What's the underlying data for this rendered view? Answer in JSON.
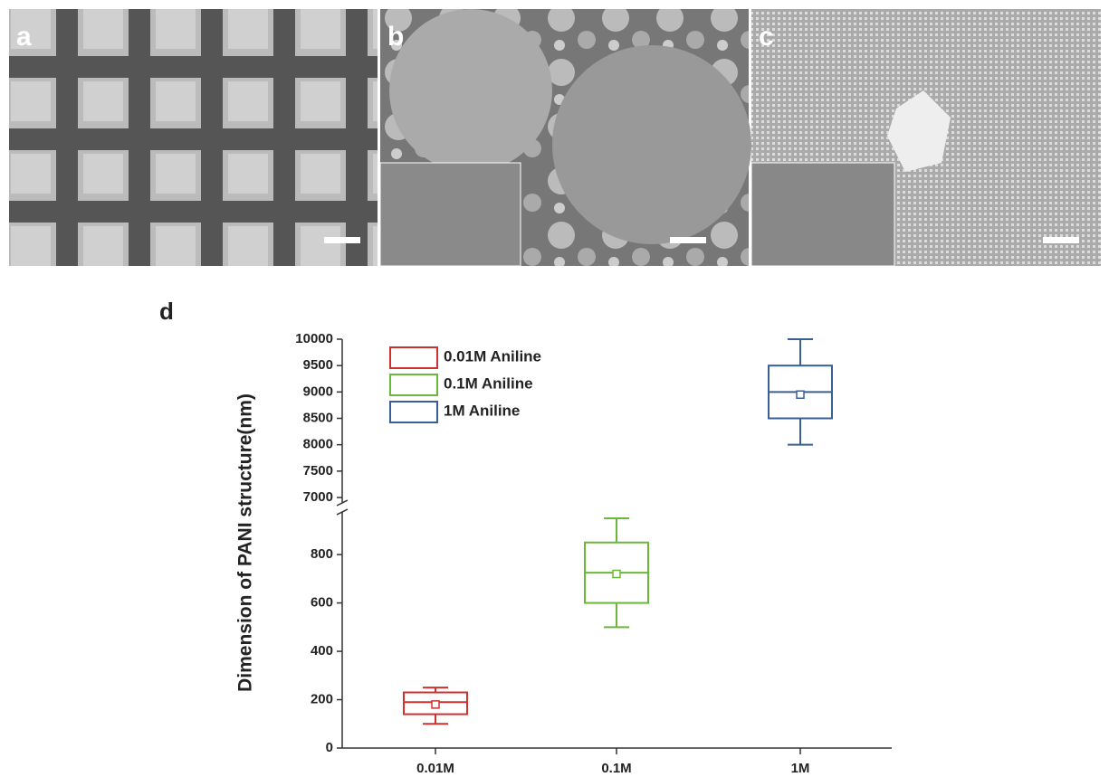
{
  "panels": [
    {
      "label": "a"
    },
    {
      "label": "b"
    },
    {
      "label": "c"
    }
  ],
  "chart_data": {
    "type": "box",
    "panel_label": "d",
    "y_label": "Dimension of PANI structure(nm)",
    "categories": [
      "0.01M",
      "0.1M",
      "1M"
    ],
    "segments": [
      {
        "ylim": [
          0,
          950
        ],
        "yticks": [
          0,
          200,
          400,
          600,
          800
        ]
      },
      {
        "ylim": [
          7000,
          10000
        ],
        "yticks": [
          7000,
          7500,
          8000,
          8500,
          9000,
          9500,
          10000
        ]
      }
    ],
    "series": [
      {
        "name": "0.01M Aniline",
        "color": "#d03030",
        "stats": {
          "min": 100,
          "q1": 140,
          "median": 190,
          "q3": 230,
          "max": 250,
          "mean": 180
        }
      },
      {
        "name": "0.1M Aniline",
        "color": "#6ab83a",
        "stats": {
          "min": 500,
          "q1": 600,
          "median": 725,
          "q3": 850,
          "max": 950,
          "mean": 720
        }
      },
      {
        "name": "1M Aniline",
        "color": "#3a5f95",
        "stats": {
          "min": 8000,
          "q1": 8500,
          "median": 9000,
          "q3": 9500,
          "max": 10000,
          "mean": 8950
        }
      }
    ]
  }
}
